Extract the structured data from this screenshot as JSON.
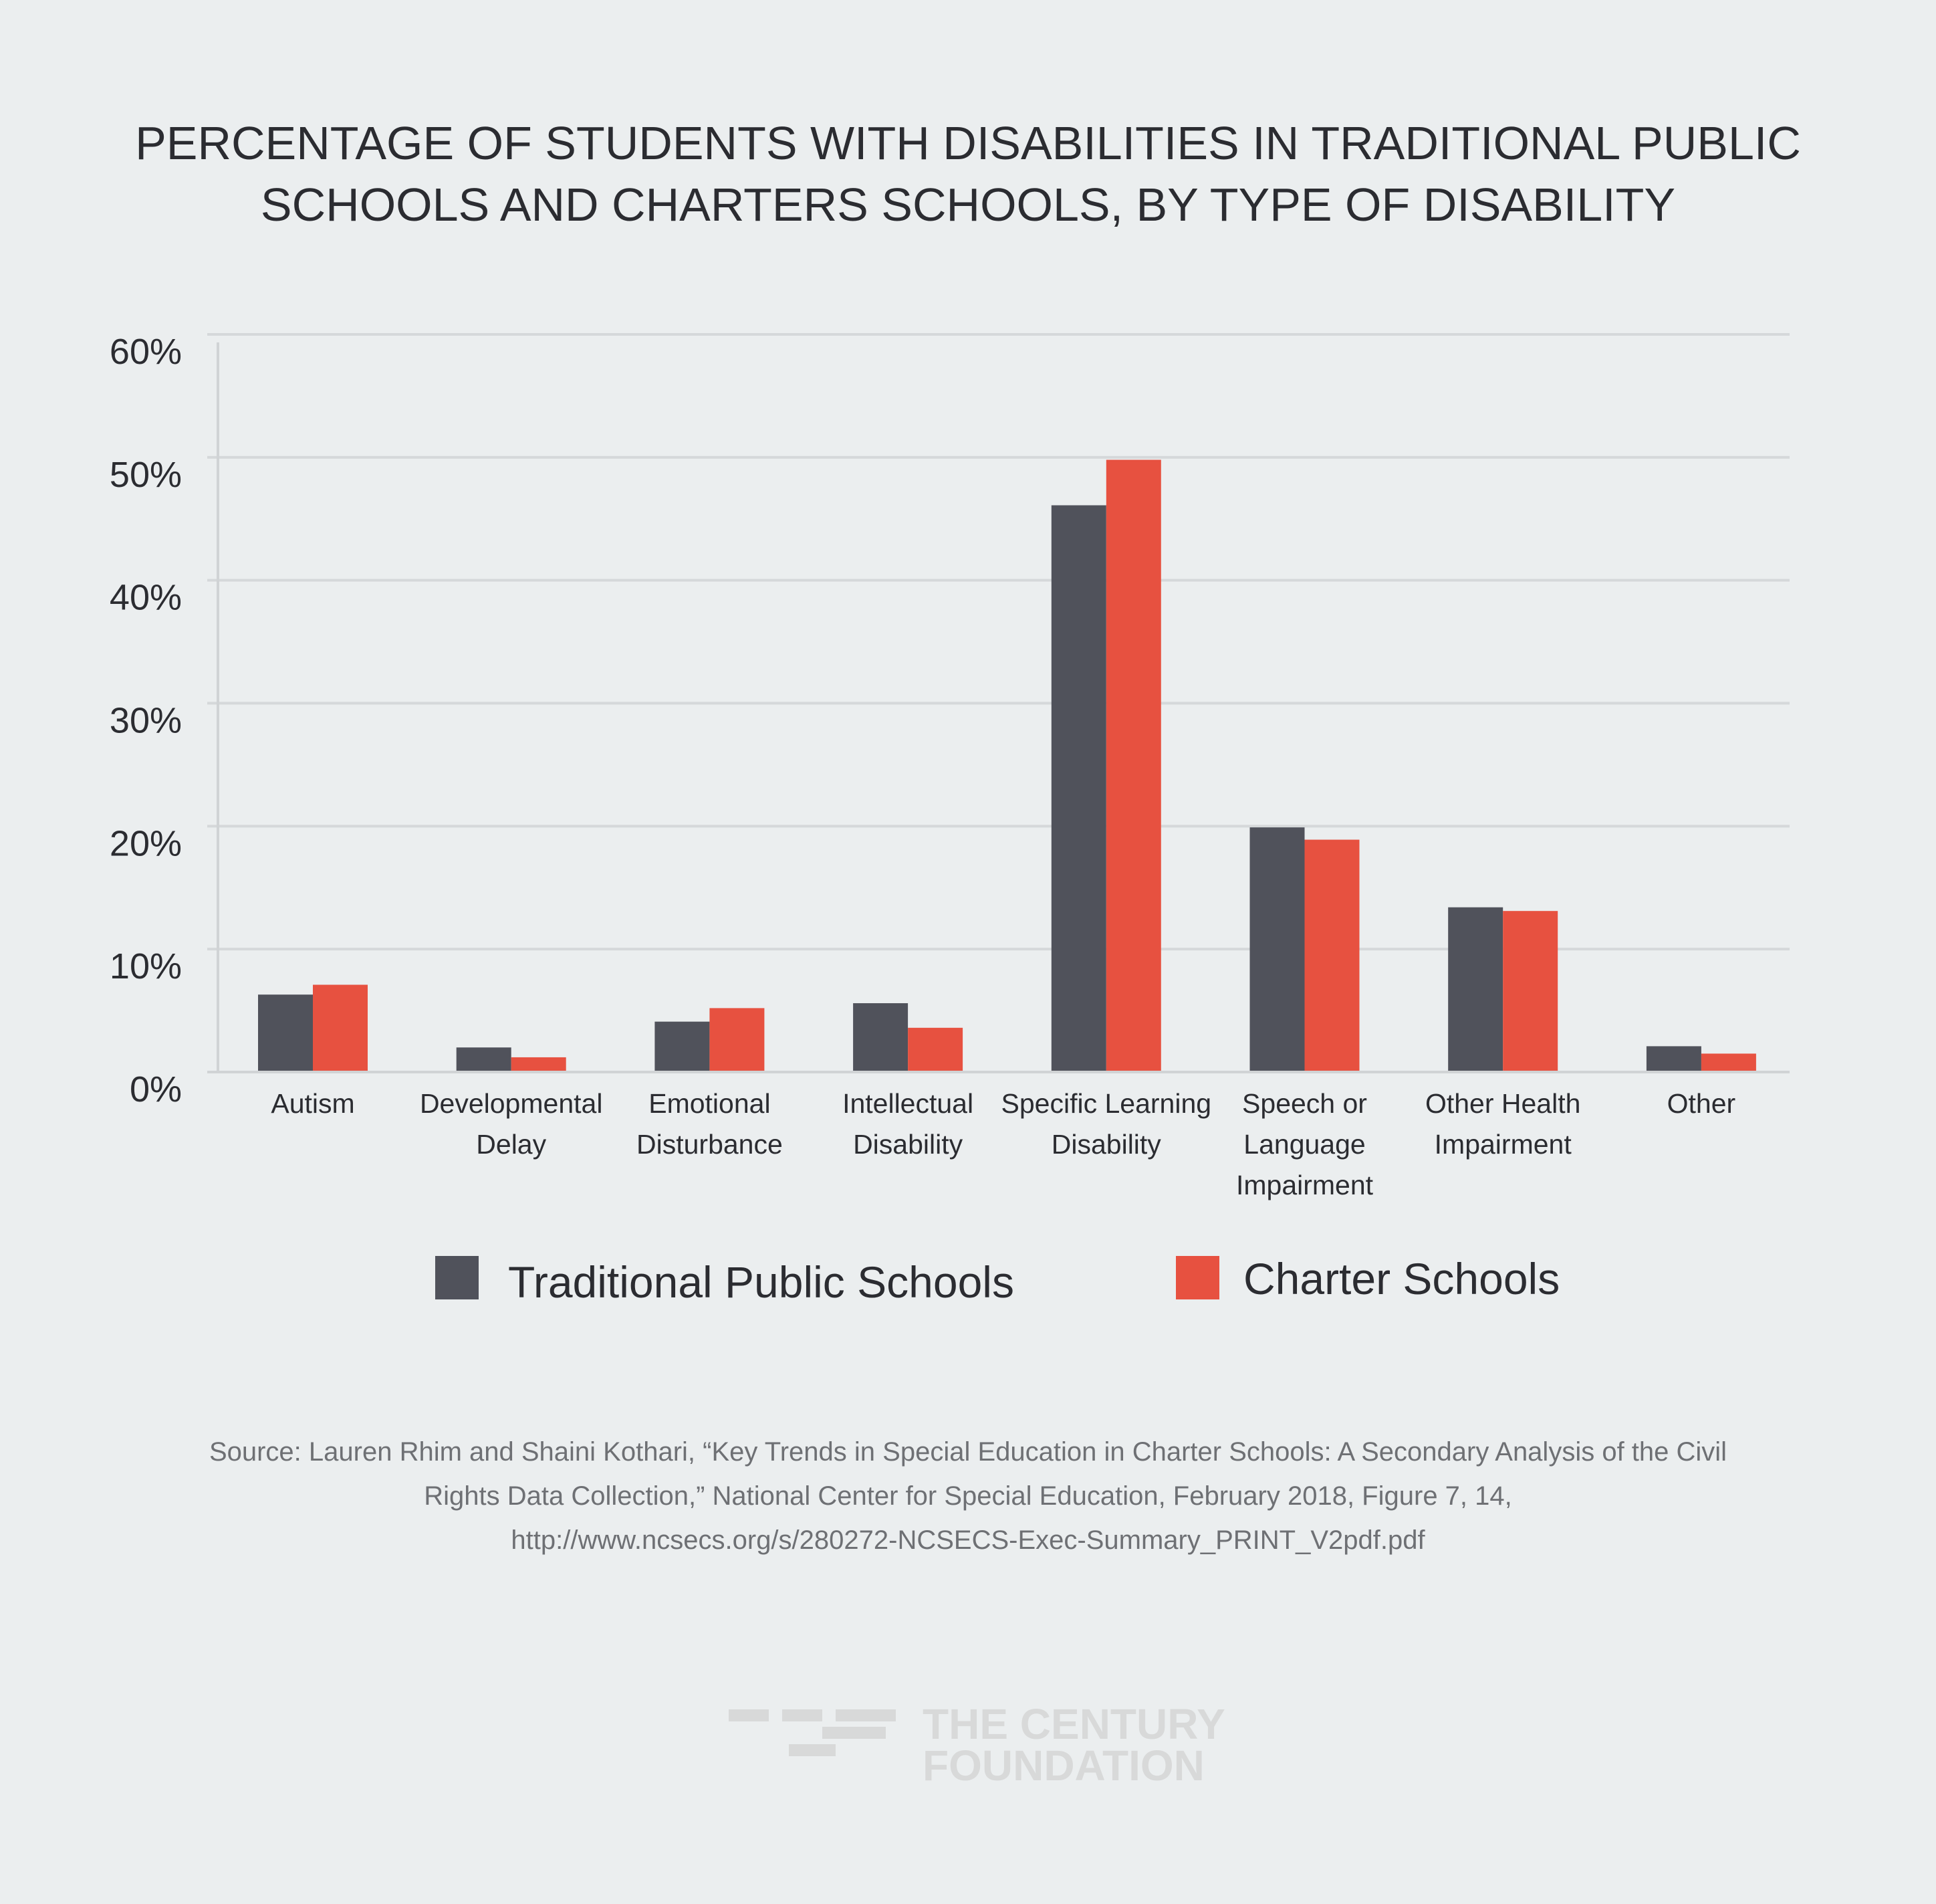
{
  "colors": {
    "background": "#ebeeef",
    "traditional": "#50525b",
    "charter": "#e75140",
    "grid": "#d5d8da",
    "axis": "#d0d3d5",
    "logo": "#d8d9d9"
  },
  "chart_data": {
    "type": "bar",
    "title_lines": [
      "PERCENTAGE OF STUDENTS WITH DISABILITIES IN TRADITIONAL PUBLIC",
      "SCHOOLS AND CHARTERS SCHOOLS, BY TYPE OF DISABILITY"
    ],
    "xlabel": "",
    "ylabel": "",
    "ylim": [
      0,
      60
    ],
    "yticks": [
      0,
      10,
      20,
      30,
      40,
      50,
      60
    ],
    "ytick_labels": [
      "0%",
      "10%",
      "20%",
      "30%",
      "40%",
      "50%",
      "60%"
    ],
    "grid": true,
    "legend_position": "bottom",
    "categories": [
      "Autism",
      "Developmental Delay",
      "Emotional Disturbance",
      "Intellectual Disability",
      "Specific Learning Disability",
      "Speech or Language Impairment",
      "Other Health Impairment",
      "Other"
    ],
    "category_label_lines": [
      [
        "Autism"
      ],
      [
        "Developmental",
        "Delay"
      ],
      [
        "Emotional",
        "Disturbance"
      ],
      [
        "Intellectual",
        "Disability"
      ],
      [
        "Specific Learning",
        "Disability"
      ],
      [
        "Speech or",
        "Language",
        "Impairment"
      ],
      [
        "Other Health",
        "Impairment"
      ],
      [
        "Other"
      ]
    ],
    "series": [
      {
        "name": "Traditional Public Schools",
        "color": "#50525b",
        "values": [
          6.3,
          2.0,
          4.1,
          5.6,
          46.1,
          19.9,
          13.4,
          2.1
        ]
      },
      {
        "name": "Charter Schools",
        "color": "#e75140",
        "values": [
          7.1,
          1.2,
          5.2,
          3.6,
          49.8,
          18.9,
          13.1,
          1.5
        ]
      }
    ]
  },
  "source": {
    "lines": [
      "Source: Lauren Rhim and Shaini Kothari, “Key Trends in Special Education in Charter Schools: A Secondary Analysis of the Civil",
      "Rights Data Collection,” National Center for Special Education, February 2018, Figure 7, 14,",
      "http://www.ncsecs.org/s/280272-NCSECS-Exec-Summary_PRINT_V2pdf.pdf"
    ]
  },
  "logo": {
    "lines": [
      "THE CENTURY",
      "FOUNDATION"
    ]
  }
}
